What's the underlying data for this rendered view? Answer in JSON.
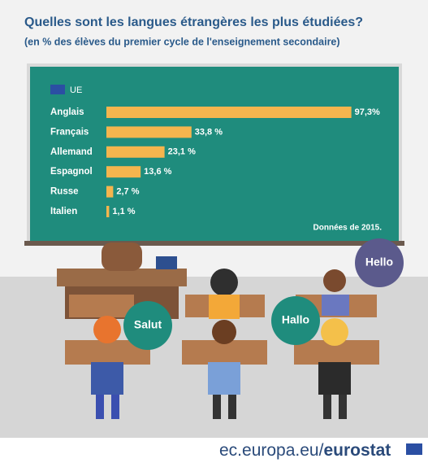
{
  "chart_data": {
    "type": "bar",
    "orientation": "horizontal",
    "title": "Quelles sont les langues étrangères les plus étudiées?",
    "subtitle": "(en % des élèves du premier cycle de l'enseignement secondaire)",
    "legend": "UE",
    "categories": [
      "Anglais",
      "Français",
      "Allemand",
      "Espagnol",
      "Russe",
      "Italien"
    ],
    "values": [
      97.3,
      33.8,
      23.1,
      13.6,
      2.7,
      1.1
    ],
    "value_labels": [
      "97,3%",
      "33,8 %",
      "23,1 %",
      "13,6 %",
      "2,7 %",
      "1,1 %"
    ],
    "color": "#f5b54e",
    "note": "Données de 2015.",
    "annotations": [
      "Hello",
      "Salut",
      "Hallo"
    ]
  },
  "footer": {
    "site": "ec.europa.eu/",
    "brand": "eurostat"
  }
}
